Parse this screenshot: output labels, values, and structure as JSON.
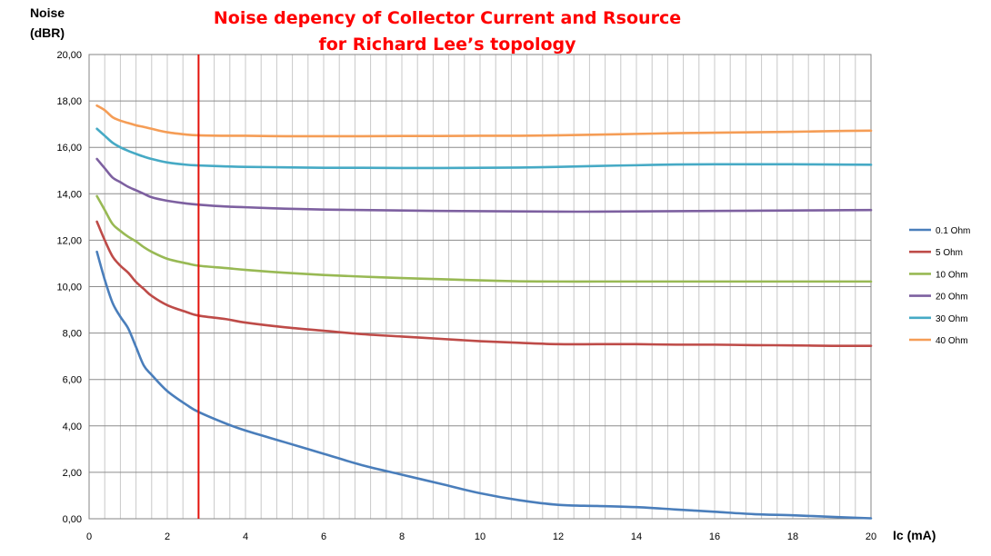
{
  "chart_data": {
    "type": "line",
    "title": [
      "Noise depency of Collector Current and Rsource",
      "for Richard Lee’s topology"
    ],
    "ylabel": [
      "Noise",
      "(dBR)"
    ],
    "xlabel": "Ic (mA)",
    "xlim": [
      0,
      20
    ],
    "ylim": [
      0,
      20
    ],
    "x_ticks": [
      0,
      2,
      4,
      6,
      8,
      10,
      12,
      14,
      16,
      18,
      20
    ],
    "x_minor_step": 0.4,
    "y_ticks": [
      "0,00",
      "2,00",
      "4,00",
      "6,00",
      "8,00",
      "10,00",
      "12,00",
      "14,00",
      "16,00",
      "18,00",
      "20,00"
    ],
    "y_tick_values": [
      0,
      2,
      4,
      6,
      8,
      10,
      12,
      14,
      16,
      18,
      20
    ],
    "grid": true,
    "legend_position": "right",
    "vertical_marker": {
      "x": 2.8,
      "color": "#e3120b"
    },
    "series": [
      {
        "name": "0.1 Ohm",
        "color": "#4a7ebb",
        "x": [
          0.2,
          0.4,
          0.6,
          0.8,
          1.0,
          1.2,
          1.4,
          1.6,
          2.0,
          2.5,
          2.8,
          3.5,
          4.0,
          5.0,
          6.0,
          7.0,
          8.0,
          9.0,
          10.0,
          11.0,
          12.0,
          13.0,
          14.0,
          15.0,
          16.0,
          17.0,
          18.0,
          19.0,
          20.0
        ],
        "y": [
          11.5,
          10.3,
          9.3,
          8.7,
          8.2,
          7.4,
          6.6,
          6.2,
          5.5,
          4.9,
          4.6,
          4.1,
          3.8,
          3.3,
          2.8,
          2.3,
          1.9,
          1.5,
          1.1,
          0.8,
          0.6,
          0.55,
          0.5,
          0.4,
          0.3,
          0.2,
          0.15,
          0.08,
          0.02
        ]
      },
      {
        "name": "5 Ohm",
        "color": "#be4b48",
        "x": [
          0.2,
          0.4,
          0.6,
          0.8,
          1.0,
          1.2,
          1.4,
          1.6,
          2.0,
          2.5,
          2.8,
          3.5,
          4.0,
          5.0,
          6.0,
          7.0,
          8.0,
          9.0,
          10.0,
          11.0,
          12.0,
          13.0,
          14.0,
          15.0,
          16.0,
          17.0,
          18.0,
          19.0,
          20.0
        ],
        "y": [
          12.8,
          12.0,
          11.3,
          10.9,
          10.6,
          10.2,
          9.9,
          9.6,
          9.2,
          8.9,
          8.75,
          8.6,
          8.45,
          8.25,
          8.1,
          7.95,
          7.85,
          7.75,
          7.65,
          7.58,
          7.52,
          7.52,
          7.52,
          7.5,
          7.5,
          7.48,
          7.47,
          7.45,
          7.45
        ]
      },
      {
        "name": "10 Ohm",
        "color": "#98b954",
        "x": [
          0.2,
          0.4,
          0.6,
          0.8,
          1.0,
          1.2,
          1.4,
          1.6,
          2.0,
          2.5,
          2.8,
          3.5,
          4.0,
          5.0,
          6.0,
          7.0,
          8.0,
          9.0,
          10.0,
          11.0,
          12.0,
          13.0,
          14.0,
          15.0,
          16.0,
          17.0,
          18.0,
          19.0,
          20.0
        ],
        "y": [
          13.9,
          13.3,
          12.7,
          12.4,
          12.15,
          11.95,
          11.7,
          11.5,
          11.2,
          11.0,
          10.9,
          10.8,
          10.72,
          10.6,
          10.5,
          10.43,
          10.37,
          10.32,
          10.27,
          10.23,
          10.22,
          10.22,
          10.22,
          10.22,
          10.22,
          10.22,
          10.22,
          10.22,
          10.22
        ]
      },
      {
        "name": "20 Ohm",
        "color": "#7d60a0",
        "x": [
          0.2,
          0.4,
          0.6,
          0.8,
          1.0,
          1.2,
          1.4,
          1.6,
          2.0,
          2.5,
          2.8,
          3.5,
          4.0,
          5.0,
          6.0,
          7.0,
          8.0,
          9.0,
          10.0,
          11.0,
          12.0,
          13.0,
          14.0,
          15.0,
          16.0,
          17.0,
          18.0,
          19.0,
          20.0
        ],
        "y": [
          15.5,
          15.1,
          14.7,
          14.5,
          14.3,
          14.15,
          14.0,
          13.85,
          13.7,
          13.58,
          13.53,
          13.45,
          13.42,
          13.36,
          13.32,
          13.3,
          13.28,
          13.26,
          13.25,
          13.24,
          13.23,
          13.23,
          13.24,
          13.25,
          13.26,
          13.27,
          13.28,
          13.29,
          13.3
        ]
      },
      {
        "name": "30 Ohm",
        "color": "#46aac5",
        "x": [
          0.2,
          0.4,
          0.6,
          0.8,
          1.0,
          1.2,
          1.4,
          1.6,
          2.0,
          2.5,
          2.8,
          3.5,
          4.0,
          5.0,
          6.0,
          7.0,
          8.0,
          9.0,
          10.0,
          11.0,
          12.0,
          13.0,
          14.0,
          15.0,
          16.0,
          17.0,
          18.0,
          19.0,
          20.0
        ],
        "y": [
          16.8,
          16.5,
          16.2,
          16.0,
          15.85,
          15.72,
          15.6,
          15.5,
          15.35,
          15.25,
          15.22,
          15.18,
          15.16,
          15.14,
          15.12,
          15.12,
          15.11,
          15.11,
          15.12,
          15.13,
          15.16,
          15.2,
          15.23,
          15.26,
          15.27,
          15.27,
          15.27,
          15.26,
          15.25
        ]
      },
      {
        "name": "40 Ohm",
        "color": "#f59d56",
        "x": [
          0.2,
          0.4,
          0.6,
          0.8,
          1.0,
          1.2,
          1.4,
          1.6,
          2.0,
          2.5,
          2.8,
          3.5,
          4.0,
          5.0,
          6.0,
          7.0,
          8.0,
          9.0,
          10.0,
          11.0,
          12.0,
          13.0,
          14.0,
          15.0,
          16.0,
          17.0,
          18.0,
          19.0,
          20.0
        ],
        "y": [
          17.8,
          17.6,
          17.3,
          17.15,
          17.05,
          16.95,
          16.88,
          16.8,
          16.65,
          16.55,
          16.52,
          16.5,
          16.5,
          16.48,
          16.48,
          16.48,
          16.49,
          16.49,
          16.5,
          16.5,
          16.52,
          16.55,
          16.58,
          16.61,
          16.63,
          16.65,
          16.67,
          16.7,
          16.72
        ]
      }
    ]
  }
}
